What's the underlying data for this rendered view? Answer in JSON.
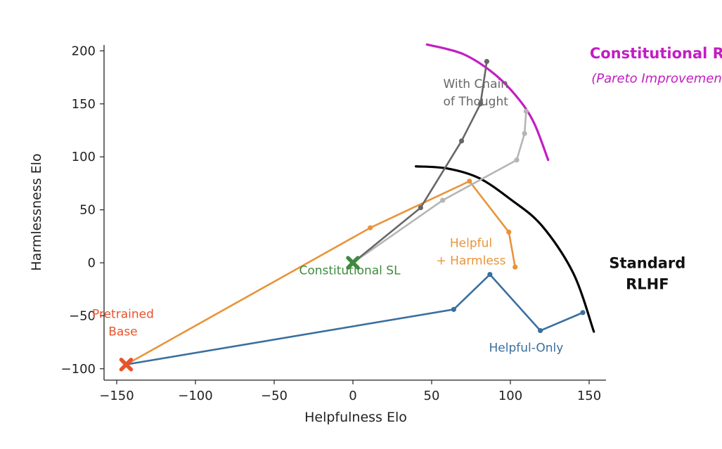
{
  "chart_data": {
    "type": "line",
    "xlabel": "Helpfulness Elo",
    "ylabel": "Harmlessness Elo",
    "xlim": [
      -160,
      160
    ],
    "ylim": [
      -110,
      205
    ],
    "xticks": [
      -150,
      -100,
      -50,
      0,
      50,
      100,
      150
    ],
    "yticks": [
      -100,
      -50,
      0,
      50,
      100,
      150,
      200
    ],
    "xtick_labels": [
      "−150",
      "−100",
      "−50",
      "0",
      "50",
      "100",
      "150"
    ],
    "ytick_labels": [
      "−100",
      "−50",
      "0",
      "50",
      "100",
      "150",
      "200"
    ],
    "grid": false,
    "series": [
      {
        "key": "helpful-only",
        "color": "#3a6f9f",
        "points": [
          [
            -144,
            -96
          ],
          [
            64,
            -44
          ],
          [
            87,
            -11
          ],
          [
            119,
            -64
          ],
          [
            146,
            -47
          ]
        ]
      },
      {
        "key": "helpful-harmless",
        "color": "#e8943a",
        "points": [
          [
            -144,
            -96
          ],
          [
            11,
            33
          ],
          [
            74,
            77
          ],
          [
            99,
            29
          ],
          [
            103,
            -4
          ]
        ]
      },
      {
        "key": "constitutional-rl",
        "color": "#b5b5b5",
        "points": [
          [
            0,
            0
          ],
          [
            57,
            59
          ],
          [
            104,
            97
          ],
          [
            109,
            122
          ],
          [
            110,
            143
          ]
        ]
      },
      {
        "key": "chain-of-thought",
        "color": "#666666",
        "points": [
          [
            0,
            0
          ],
          [
            43,
            52
          ],
          [
            69,
            115
          ],
          [
            81,
            150
          ],
          [
            85,
            190
          ]
        ]
      }
    ],
    "markers": [
      {
        "key": "pretrained-base",
        "x": -144,
        "y": -96,
        "color": "#e8542a"
      },
      {
        "key": "constitutional-sl",
        "x": 0,
        "y": 0,
        "color": "#3f8a3f"
      }
    ],
    "frontiers": [
      {
        "key": "standard-rlhf",
        "color": "#000000",
        "points": [
          [
            40,
            91
          ],
          [
            60,
            89
          ],
          [
            80,
            80
          ],
          [
            100,
            60
          ],
          [
            120,
            35
          ],
          [
            140,
            -10
          ],
          [
            153,
            -65
          ]
        ]
      },
      {
        "key": "constitutional-rl",
        "color": "#c21ec2",
        "points": [
          [
            47,
            206
          ],
          [
            70,
            197
          ],
          [
            90,
            178
          ],
          [
            105,
            155
          ],
          [
            115,
            132
          ],
          [
            124,
            97
          ]
        ]
      }
    ],
    "annotations": [
      {
        "key": "with-cot",
        "lines": [
          "With Chain",
          "of Thought"
        ],
        "color": "#666666",
        "x": 78,
        "y": 165,
        "style": "normal"
      },
      {
        "key": "pretrained",
        "lines": [
          "Pretrained",
          "Base"
        ],
        "color": "#e8542a",
        "x": -146,
        "y": -52,
        "style": "normal"
      },
      {
        "key": "const-sl",
        "lines": [
          "Constitutional SL"
        ],
        "color": "#3f8a3f",
        "x": -2,
        "y": -11,
        "style": "normal"
      },
      {
        "key": "helpful-harmless",
        "lines": [
          "Helpful",
          "+ Harmless"
        ],
        "color": "#e8943a",
        "x": 75,
        "y": 15,
        "style": "normal"
      },
      {
        "key": "helpful-only",
        "lines": [
          "Helpful-Only"
        ],
        "color": "#3a6f9f",
        "x": 110,
        "y": -84,
        "style": "normal"
      },
      {
        "key": "standard-rlhf",
        "lines": [
          "Standard",
          "RLHF"
        ],
        "color": "#111111",
        "x": 187,
        "y": -5,
        "style": "bold"
      },
      {
        "key": "const-rl",
        "lines": [
          "Constitutional RL"
        ],
        "color": "#c21ec2",
        "x": 196,
        "y": 193,
        "style": "bold"
      },
      {
        "key": "pareto",
        "lines": [
          "(Pareto Improvement)"
        ],
        "color": "#c21ec2",
        "x": 196,
        "y": 170,
        "style": "italic"
      }
    ]
  }
}
